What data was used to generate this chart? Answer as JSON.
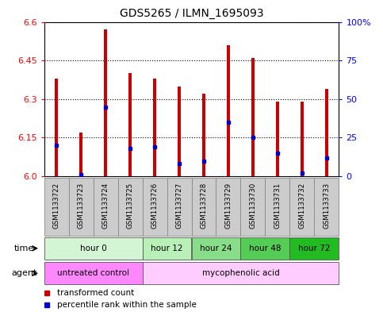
{
  "title": "GDS5265 / ILMN_1695093",
  "samples": [
    "GSM1133722",
    "GSM1133723",
    "GSM1133724",
    "GSM1133725",
    "GSM1133726",
    "GSM1133727",
    "GSM1133728",
    "GSM1133729",
    "GSM1133730",
    "GSM1133731",
    "GSM1133732",
    "GSM1133733"
  ],
  "transformed_counts": [
    6.38,
    6.17,
    6.57,
    6.4,
    6.38,
    6.35,
    6.32,
    6.51,
    6.46,
    6.29,
    6.29,
    6.34
  ],
  "percentile_ranks": [
    20,
    1,
    45,
    18,
    19,
    8,
    10,
    35,
    25,
    15,
    2,
    12
  ],
  "ymin": 6.0,
  "ymax": 6.6,
  "yticks": [
    6.0,
    6.15,
    6.3,
    6.45,
    6.6
  ],
  "right_yticks": [
    0,
    25,
    50,
    75,
    100
  ],
  "right_yticklabels": [
    "0",
    "25",
    "50",
    "75",
    "100%"
  ],
  "bar_color": "#cc0000",
  "blue_color": "#0000cc",
  "time_groups": [
    {
      "label": "hour 0",
      "indices": [
        0,
        1,
        2,
        3
      ],
      "color": "#d4f5d4"
    },
    {
      "label": "hour 12",
      "indices": [
        4,
        5
      ],
      "color": "#b8f0b8"
    },
    {
      "label": "hour 24",
      "indices": [
        6,
        7
      ],
      "color": "#88dd88"
    },
    {
      "label": "hour 48",
      "indices": [
        8,
        9
      ],
      "color": "#55cc55"
    },
    {
      "label": "hour 72",
      "indices": [
        10,
        11
      ],
      "color": "#22bb22"
    }
  ],
  "agent_groups": [
    {
      "label": "untreated control",
      "indices": [
        0,
        1,
        2,
        3
      ],
      "color": "#ff88ff"
    },
    {
      "label": "mycophenolic acid",
      "indices": [
        4,
        5,
        6,
        7,
        8,
        9,
        10,
        11
      ],
      "color": "#ffccff"
    }
  ],
  "legend_red_label": "transformed count",
  "legend_blue_label": "percentile rank within the sample",
  "bar_width": 0.12
}
